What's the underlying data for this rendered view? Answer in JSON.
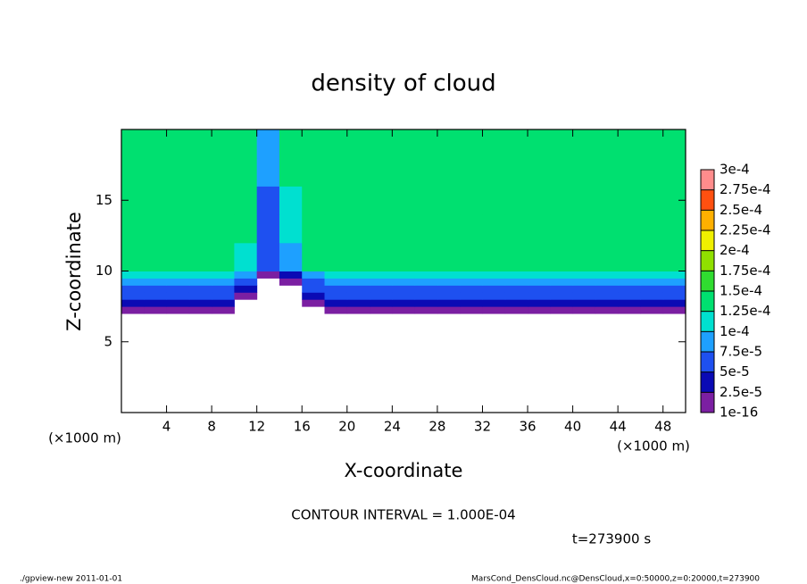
{
  "chart_data": {
    "type": "heatmap",
    "title": "density of cloud",
    "x_label": "X-coordinate",
    "y_label": "Z-coordinate",
    "y_unit": "(×1000 m)",
    "x_unit": "(×1000 m)",
    "xlim": [
      0,
      50
    ],
    "ylim": [
      0,
      20
    ],
    "xticks": [
      4,
      8,
      12,
      16,
      20,
      24,
      28,
      32,
      36,
      40,
      44,
      48
    ],
    "yticks": [
      5,
      10,
      15
    ],
    "xbins": [
      0,
      2,
      4,
      6,
      8,
      10,
      12,
      14,
      16,
      18,
      20,
      22,
      24,
      26,
      28,
      30,
      32,
      34,
      36,
      38,
      40,
      42,
      44,
      46,
      48,
      50
    ],
    "zbins": [
      0,
      7,
      7.5,
      8,
      8.5,
      9,
      9.5,
      10,
      12,
      14,
      16,
      18,
      20
    ],
    "values": [
      [
        null,
        null,
        null,
        null,
        null,
        null,
        null,
        null,
        null,
        null,
        null,
        null,
        null,
        null,
        null,
        null,
        null,
        null,
        null,
        null,
        null,
        null,
        null,
        null,
        null
      ],
      [
        1e-05,
        1e-05,
        1e-05,
        1e-05,
        1e-05,
        null,
        null,
        null,
        null,
        1e-05,
        1e-05,
        1e-05,
        1e-05,
        1e-05,
        1e-05,
        1e-05,
        1e-05,
        1e-05,
        1e-05,
        1e-05,
        1e-05,
        1e-05,
        1e-05,
        1e-05,
        1e-05
      ],
      [
        3e-05,
        3e-05,
        3e-05,
        3e-05,
        3e-05,
        null,
        null,
        null,
        1e-05,
        3e-05,
        3e-05,
        3e-05,
        3e-05,
        3e-05,
        3e-05,
        3e-05,
        3e-05,
        3e-05,
        3e-05,
        3e-05,
        3e-05,
        3e-05,
        3e-05,
        3e-05,
        3e-05
      ],
      [
        5e-05,
        5e-05,
        5e-05,
        5e-05,
        5e-05,
        1e-05,
        null,
        null,
        3e-05,
        5e-05,
        5e-05,
        5e-05,
        5e-05,
        5e-05,
        5e-05,
        5e-05,
        5e-05,
        5e-05,
        5e-05,
        5e-05,
        5e-05,
        5e-05,
        5e-05,
        5e-05,
        5e-05
      ],
      [
        7e-05,
        7e-05,
        7e-05,
        7e-05,
        7e-05,
        3e-05,
        null,
        null,
        5e-05,
        7e-05,
        7e-05,
        7e-05,
        7e-05,
        7e-05,
        7e-05,
        7e-05,
        7e-05,
        7e-05,
        7e-05,
        7e-05,
        7e-05,
        7e-05,
        7e-05,
        7e-05,
        7e-05
      ],
      [
        9e-05,
        9e-05,
        9e-05,
        9e-05,
        9e-05,
        5e-05,
        null,
        1e-05,
        7e-05,
        9e-05,
        9e-05,
        9e-05,
        9e-05,
        9e-05,
        9e-05,
        9e-05,
        9e-05,
        9e-05,
        9e-05,
        9e-05,
        9e-05,
        9e-05,
        9e-05,
        9e-05,
        9e-05
      ],
      [
        0.000105,
        0.000105,
        0.000105,
        0.000105,
        0.000105,
        8e-05,
        1e-05,
        4e-05,
        9e-05,
        0.000105,
        0.000105,
        0.000105,
        0.000105,
        0.000105,
        0.000105,
        0.000105,
        0.000105,
        0.000105,
        0.000105,
        0.000105,
        0.000105,
        0.000105,
        0.000105,
        0.000105,
        0.000105
      ],
      [
        0.00013,
        0.00013,
        0.00013,
        0.00013,
        0.00013,
        0.00011,
        5e-05,
        8e-05,
        0.00013,
        0.00013,
        0.00013,
        0.00013,
        0.00013,
        0.00013,
        0.00013,
        0.00013,
        0.00013,
        0.00013,
        0.00013,
        0.00013,
        0.00013,
        0.00013,
        0.00013,
        0.00013,
        0.00013
      ],
      [
        0.00014,
        0.00014,
        0.00014,
        0.00014,
        0.00014,
        0.00014,
        6e-05,
        0.00011,
        0.00014,
        0.00014,
        0.00014,
        0.00014,
        0.00014,
        0.00014,
        0.00014,
        0.00014,
        0.00014,
        0.00014,
        0.00014,
        0.00014,
        0.00014,
        0.00014,
        0.00014,
        0.00014,
        0.00014
      ],
      [
        0.000145,
        0.000145,
        0.000145,
        0.000145,
        0.000145,
        0.000145,
        7e-05,
        0.00012,
        0.000145,
        0.000145,
        0.000145,
        0.000145,
        0.000145,
        0.000145,
        0.000145,
        0.000145,
        0.000145,
        0.000145,
        0.000145,
        0.000145,
        0.000145,
        0.000145,
        0.000145,
        0.000145,
        0.000145
      ],
      [
        0.00014,
        0.00014,
        0.00014,
        0.00014,
        0.00014,
        0.00014,
        8e-05,
        0.00014,
        0.00014,
        0.00014,
        0.00014,
        0.00014,
        0.00014,
        0.00014,
        0.00014,
        0.00014,
        0.00014,
        0.00014,
        0.00014,
        0.00014,
        0.00014,
        0.00014,
        0.00014,
        0.00014,
        0.00014
      ],
      [
        0.00013,
        0.00013,
        0.00013,
        0.00013,
        0.00013,
        0.00013,
        9e-05,
        0.00013,
        0.00013,
        0.00013,
        0.00013,
        0.00013,
        0.00013,
        0.00013,
        0.00013,
        0.00013,
        0.00013,
        0.00013,
        0.00013,
        0.00013,
        0.00013,
        0.00013,
        0.00013,
        0.00013,
        0.00013
      ]
    ],
    "levels": [
      1e-16,
      {
        "value": 2.5e-05,
        "label": "2.5e-5"
      },
      {
        "value": 5e-05,
        "label": "5e-5"
      },
      {
        "value": 7.5e-05,
        "label": "7.5e-5"
      },
      {
        "value": 0.0001,
        "label": "1e-4"
      },
      {
        "value": 0.000125,
        "label": "1.25e-4"
      },
      {
        "value": 0.00015,
        "label": "1.5e-4"
      },
      {
        "value": 0.000175,
        "label": "1.75e-4"
      },
      {
        "value": 0.0002,
        "label": "2e-4"
      },
      {
        "value": 0.000225,
        "label": "2.25e-4"
      },
      {
        "value": 0.00025,
        "label": "2.5e-4"
      },
      {
        "value": 0.000275,
        "label": "2.75e-4"
      },
      {
        "value": 0.0003,
        "label": "3e-4"
      }
    ],
    "colors": [
      "#7b1fa2",
      "#0a0ab4",
      "#1e50f0",
      "#1ea0ff",
      "#00e0d0",
      "#00e070",
      "#30dc30",
      "#90e000",
      "#f0f000",
      "#ffb000",
      "#ff5010",
      "#ff8c8c"
    ],
    "contour_note": "CONTOUR INTERVAL = 1.000E-04",
    "time_label": "t=273900 s",
    "footer_left": "./gpview-new  2011-01-01",
    "footer_right": "MarsCond_DensCloud.nc@DensCloud,x=0:50000,z=0:20000,t=273900"
  }
}
